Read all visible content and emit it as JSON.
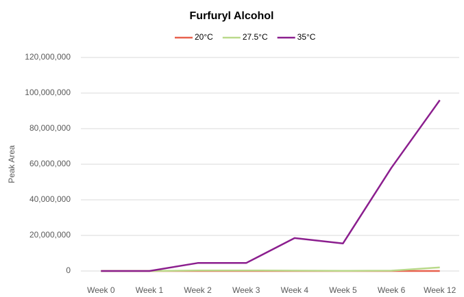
{
  "chart_data": {
    "type": "line",
    "title": "Furfuryl Alcohol",
    "y_label": "Peak Area",
    "categories": [
      "Week 0",
      "Week 1",
      "Week 2",
      "Week 3",
      "Week 4",
      "Week 5",
      "Week 6",
      "Week 12"
    ],
    "series": [
      {
        "name": "20°C",
        "color": "#e8604c",
        "values": [
          0,
          0,
          0,
          0,
          0,
          0,
          0,
          0
        ]
      },
      {
        "name": "27.5°C",
        "color": "#b9d98a",
        "values": [
          0,
          0,
          300000,
          300000,
          200000,
          100000,
          200000,
          2000000
        ]
      },
      {
        "name": "35°C",
        "color": "#8b1e8e",
        "values": [
          0,
          0,
          4500000,
          4500000,
          18500000,
          15500000,
          58000000,
          96000000
        ]
      }
    ],
    "ylim": [
      0,
      120000000
    ],
    "yticks": [
      {
        "value": 0,
        "label": "0"
      },
      {
        "value": 20000000,
        "label": "20,000,000"
      },
      {
        "value": 40000000,
        "label": "40,000,000"
      },
      {
        "value": 60000000,
        "label": "60,000,000"
      },
      {
        "value": 80000000,
        "label": "80,000,000"
      },
      {
        "value": 100000000,
        "label": "100,000,000"
      },
      {
        "value": 120000000,
        "label": "120,000,000"
      }
    ],
    "grid": true,
    "legend": "top"
  }
}
